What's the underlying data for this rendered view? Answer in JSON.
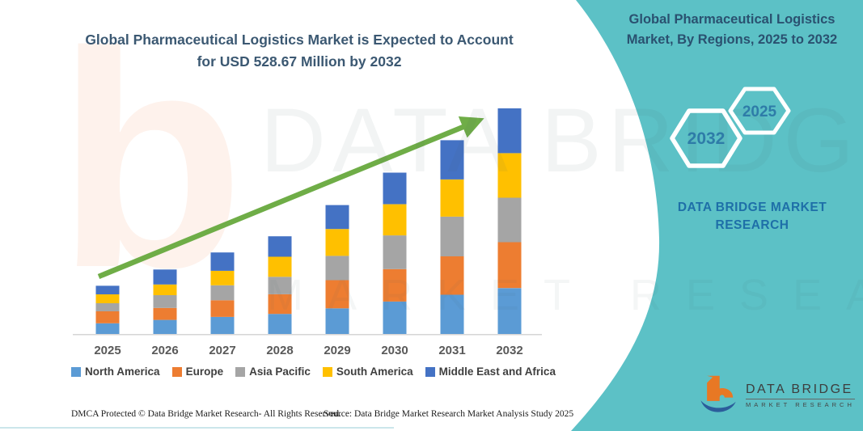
{
  "left_panel": {
    "title_line1": "Global Pharmaceutical Logistics Market is Expected to Account",
    "title_line2": "for USD 528.67 Million by 2032",
    "footer_dmca": "DMCA Protected © Data Bridge Market Research-  All Rights Reserved.",
    "footer_source": "Source: Data Bridge Market Research  Market Analysis Study 2025"
  },
  "right_panel": {
    "panel_color": "#5CC1C6",
    "title_line1": "Global Pharmaceutical Logistics",
    "title_line2": "Market, By Regions, 2025 to 2032",
    "hexagon_back_year": "2032",
    "hexagon_front_year": "2025",
    "brand_line1": "DATA BRIDGE MARKET",
    "brand_line2": "RESEARCH"
  },
  "logo": {
    "name": "DATA BRIDGE",
    "subtitle": "MARKET RESEARCH",
    "mark_orange": "#E87824",
    "mark_blue": "#2B5D9B"
  },
  "watermark": {
    "letter": "b",
    "row1": "DATA BRIDGE",
    "row2": "MARKET RESEARCH"
  },
  "chart_data": {
    "type": "bar",
    "stacked": true,
    "title": "Global Pharmaceutical Logistics Market is Expected to Account for USD 528.67 Million by 2032",
    "unit": "USD Million",
    "categories": [
      "2025",
      "2026",
      "2027",
      "2028",
      "2029",
      "2030",
      "2031",
      "2032"
    ],
    "series": [
      {
        "name": "North America",
        "color": "#5B9BD5",
        "values": [
          25,
          33,
          40,
          47,
          60,
          76,
          92,
          107.5
        ]
      },
      {
        "name": "Europe",
        "color": "#ED7D31",
        "values": [
          28,
          28,
          39,
          46,
          66,
          76,
          90,
          107.5
        ]
      },
      {
        "name": "Asia Pacific",
        "color": "#A5A5A5",
        "values": [
          19,
          30,
          35,
          41,
          57,
          79,
          93,
          104.3
        ]
      },
      {
        "name": "South America",
        "color": "#FFC000",
        "values": [
          21,
          25,
          34,
          47,
          63,
          73,
          87,
          104.3
        ]
      },
      {
        "name": "Middle East and Africa",
        "color": "#4472C4",
        "values": [
          20,
          35,
          43,
          48,
          56,
          74,
          92,
          105.07
        ]
      }
    ],
    "totals": [
      113,
      151,
      191,
      229,
      302,
      378,
      454,
      528.67
    ],
    "ylim": [
      0,
      560
    ],
    "gridlines": false,
    "legend_position": "bottom",
    "trend_arrow": true,
    "arrow_color": "#6FAD47",
    "axis_label_color": "#595959"
  }
}
